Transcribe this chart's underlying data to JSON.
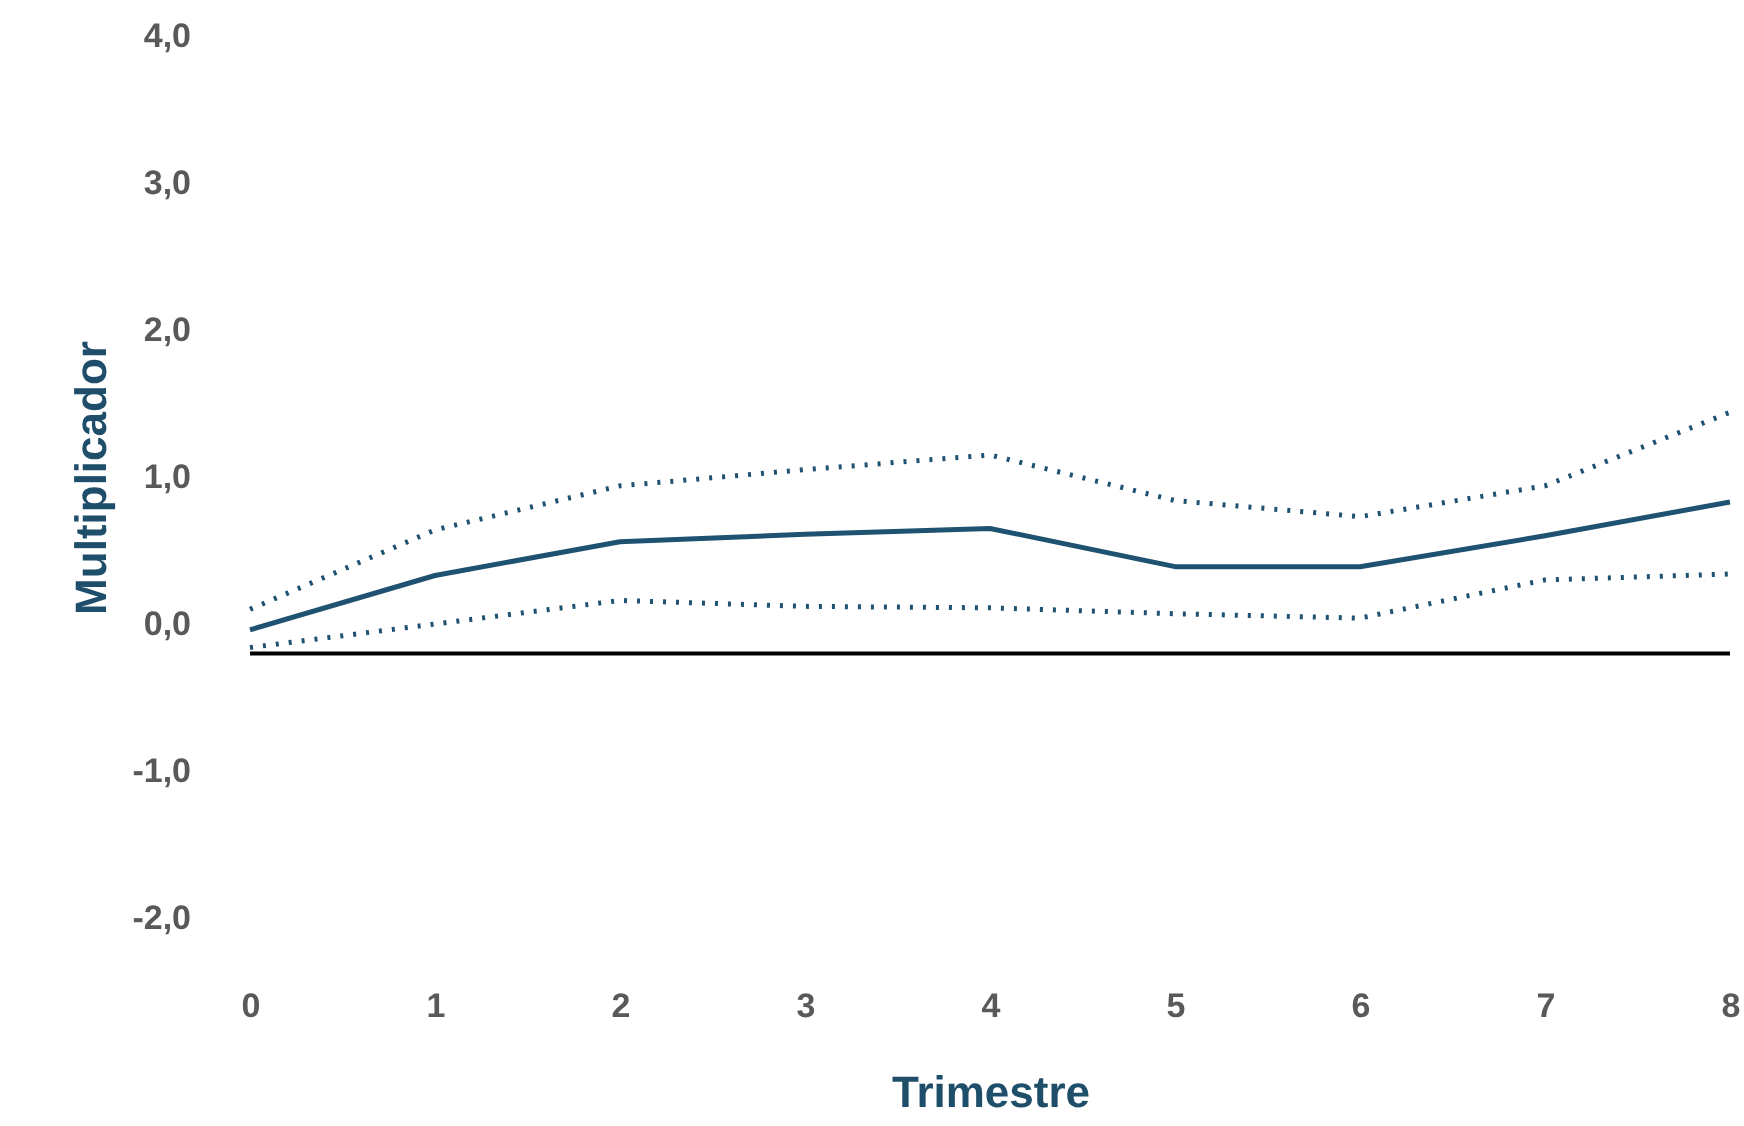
{
  "chart_data": {
    "type": "line",
    "xlabel": "Trimestre",
    "ylabel": "Multiplicador",
    "x": [
      0,
      1,
      2,
      3,
      4,
      5,
      6,
      7,
      8
    ],
    "xlim": [
      0,
      8
    ],
    "xticks": [
      0,
      1,
      2,
      3,
      4,
      5,
      6,
      7,
      8
    ],
    "ylim": [
      -2,
      4
    ],
    "yticks": [
      {
        "value": -2,
        "label": "-2,0"
      },
      {
        "value": -1,
        "label": "-1,0"
      },
      {
        "value": 0,
        "label": "0,0"
      },
      {
        "value": 1,
        "label": "1,0"
      },
      {
        "value": 2,
        "label": "2,0"
      },
      {
        "value": 3,
        "label": "3,0"
      },
      {
        "value": 4,
        "label": "4,0"
      }
    ],
    "series": [
      {
        "color": "#1f5270",
        "line_style": "solid",
        "values": [
          -0.04,
          0.33,
          0.56,
          0.61,
          0.65,
          0.39,
          0.39,
          0.6,
          0.83
        ]
      },
      {
        "color": "#1f5270",
        "line_style": "dotted",
        "values": [
          0.1,
          0.64,
          0.94,
          1.05,
          1.15,
          0.84,
          0.73,
          0.94,
          1.44
        ]
      },
      {
        "color": "#1f5270",
        "line_style": "dotted",
        "values": [
          -0.16,
          0.0,
          0.16,
          0.12,
          0.11,
          0.07,
          0.04,
          0.3,
          0.34
        ]
      }
    ],
    "ref_lines": [
      {
        "axis": "y",
        "value": -0.2,
        "color": "#000000"
      }
    ],
    "grid": false,
    "marker": "none"
  }
}
